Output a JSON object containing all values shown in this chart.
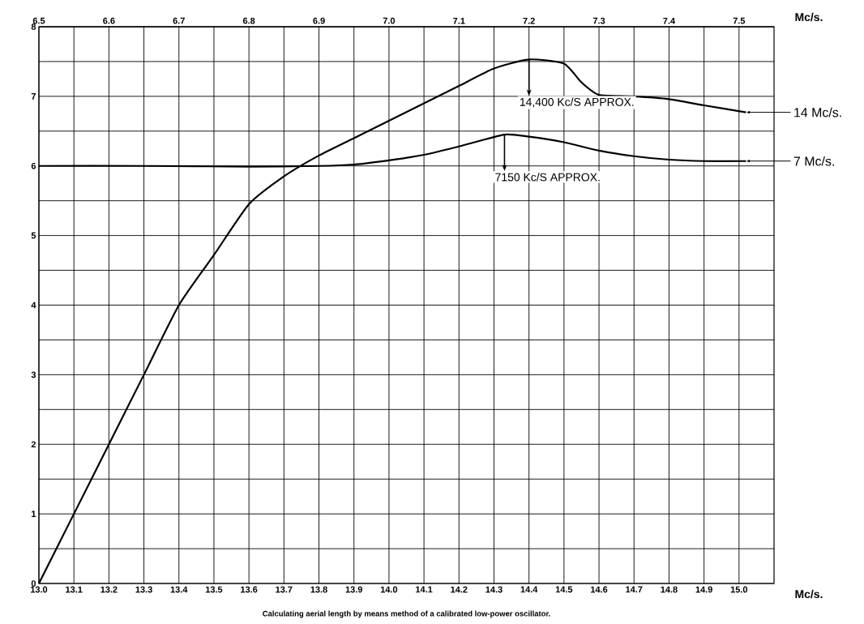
{
  "chart_data": {
    "type": "line",
    "xlim": [
      13.0,
      15.1
    ],
    "xticks": [
      {
        "value": 13.0,
        "label": "13.0"
      },
      {
        "value": 13.1,
        "label": "13.1"
      },
      {
        "value": 13.2,
        "label": "13.2"
      },
      {
        "value": 13.3,
        "label": "13.3"
      },
      {
        "value": 13.4,
        "label": "13.4"
      },
      {
        "value": 13.5,
        "label": "13.5"
      },
      {
        "value": 13.6,
        "label": "13.6"
      },
      {
        "value": 13.7,
        "label": "13.7"
      },
      {
        "value": 13.8,
        "label": "13.8"
      },
      {
        "value": 13.9,
        "label": "13.9"
      },
      {
        "value": 14.0,
        "label": "14.0"
      },
      {
        "value": 14.1,
        "label": "14.1"
      },
      {
        "value": 14.2,
        "label": "14.2"
      },
      {
        "value": 14.3,
        "label": "14.3"
      },
      {
        "value": 14.4,
        "label": "14.4"
      },
      {
        "value": 14.5,
        "label": "14.5"
      },
      {
        "value": 14.6,
        "label": "14.6"
      },
      {
        "value": 14.7,
        "label": "14.7"
      },
      {
        "value": 14.8,
        "label": "14.8"
      },
      {
        "value": 14.9,
        "label": "14.9"
      },
      {
        "value": 15.0,
        "label": "15.0"
      }
    ],
    "xlabel": "Mc/s.",
    "x2lim": [
      6.5,
      7.55
    ],
    "x2ticks": [
      {
        "value": 6.5,
        "label": "6.5"
      },
      {
        "value": 6.6,
        "label": "6.6"
      },
      {
        "value": 6.7,
        "label": "6.7"
      },
      {
        "value": 6.8,
        "label": "6.8"
      },
      {
        "value": 6.9,
        "label": "6.9"
      },
      {
        "value": 7.0,
        "label": "7.0"
      },
      {
        "value": 7.1,
        "label": "7.1"
      },
      {
        "value": 7.2,
        "label": "7.2"
      },
      {
        "value": 7.3,
        "label": "7.3"
      },
      {
        "value": 7.4,
        "label": "7.4"
      },
      {
        "value": 7.5,
        "label": "7.5"
      }
    ],
    "x2label": "Mc/s.",
    "ylim": [
      0,
      8
    ],
    "yticks": [
      0,
      {
        "value": 0.5,
        "label": null
      },
      1,
      {
        "value": 1.5,
        "label": null
      },
      2,
      {
        "value": 2.5,
        "label": null
      },
      3,
      {
        "value": 3.5,
        "label": null
      },
      4,
      {
        "value": 4.5,
        "label": null
      },
      5,
      {
        "value": 5.5,
        "label": null
      },
      6,
      {
        "value": 6.5,
        "label": null
      },
      7,
      {
        "value": 7.5,
        "label": null
      },
      8
    ],
    "grid": true,
    "legend": "right",
    "line_style": "solid",
    "series": [
      {
        "name": "14 Mc/s.",
        "color": "#000000",
        "x": [
          13.0,
          13.1,
          13.2,
          13.3,
          13.4,
          13.5,
          13.6,
          13.7,
          13.8,
          13.9,
          14.0,
          14.1,
          14.2,
          14.3,
          14.4,
          14.5,
          14.55,
          14.6,
          14.7,
          14.8,
          14.9,
          15.02
        ],
        "values": [
          0,
          1,
          2,
          3,
          4,
          4.72,
          5.45,
          5.85,
          6.15,
          6.4,
          6.65,
          6.9,
          7.15,
          7.4,
          7.53,
          7.47,
          7.2,
          7.02,
          7.0,
          6.96,
          6.87,
          6.77
        ]
      },
      {
        "name": "7 Mc/s.",
        "color": "#000000",
        "x": [
          13.0,
          13.3,
          13.6,
          13.8,
          13.9,
          14.0,
          14.1,
          14.2,
          14.33,
          14.4,
          14.5,
          14.6,
          14.7,
          14.8,
          14.9,
          15.02
        ],
        "values": [
          6.0,
          6.0,
          5.99,
          6.0,
          6.02,
          6.08,
          6.16,
          6.28,
          6.45,
          6.42,
          6.34,
          6.22,
          6.14,
          6.09,
          6.07,
          6.07
        ]
      }
    ],
    "annotations": [
      {
        "text": "14,400 Kc/S APPROX.",
        "x": 14.4,
        "y": 7.53
      },
      {
        "text": "7150 Kc/S APPROX.",
        "x": 14.33,
        "y": 6.45
      },
      "Calculating aerial length by means method of a calibrated low-power oscillator."
    ]
  }
}
